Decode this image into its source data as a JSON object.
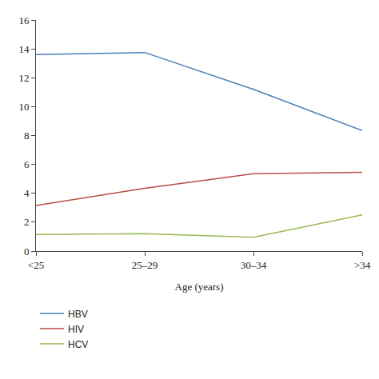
{
  "chart_data": {
    "type": "line",
    "x_label": "Age (years)",
    "categories": [
      "<25",
      "25–29",
      "30–34",
      ">34"
    ],
    "series": [
      {
        "name": "HBV",
        "color": "#4a7ebb",
        "values": [
          13.6,
          13.75,
          11.2,
          8.35
        ]
      },
      {
        "name": "HIV",
        "color": "#be4b48",
        "values": [
          3.15,
          4.35,
          5.35,
          5.45
        ]
      },
      {
        "name": "HCV",
        "color": "#98b954",
        "values": [
          1.15,
          1.2,
          0.95,
          2.5
        ]
      }
    ],
    "ylim": [
      0,
      16
    ],
    "yticks": [
      0,
      2,
      4,
      6,
      8,
      10,
      12,
      14,
      16
    ],
    "grid": false,
    "legend": "bottom"
  }
}
